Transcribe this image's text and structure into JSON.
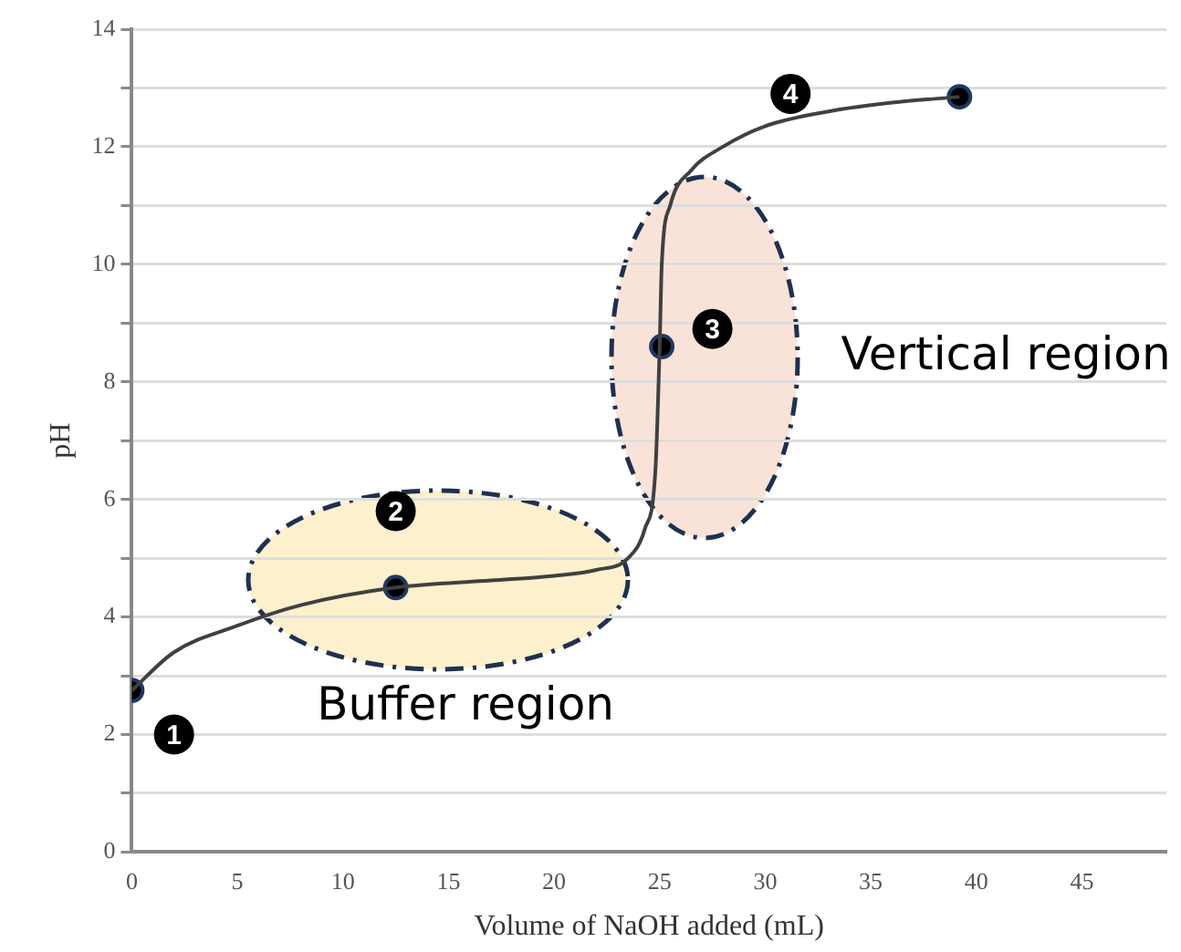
{
  "chart_data": {
    "type": "line",
    "xlabel": "Volume of NaOH added (mL)",
    "ylabel": "pH",
    "xlim": [
      0,
      49
    ],
    "xticks": [
      0,
      5,
      10,
      15,
      20,
      25,
      30,
      35,
      40,
      45
    ],
    "ylim": [
      0,
      14
    ],
    "yticks": [
      0,
      {
        "value": 1,
        "label": null
      },
      2,
      {
        "value": 3,
        "label": null
      },
      4,
      {
        "value": 5,
        "label": null
      },
      6,
      {
        "value": 7,
        "label": null
      },
      8,
      {
        "value": 9,
        "label": null
      },
      10,
      {
        "value": 11,
        "label": null
      },
      12,
      {
        "value": 13,
        "label": null
      },
      14
    ],
    "grid": "y",
    "legend": false,
    "series": [
      {
        "color": "#404040",
        "marker": "none",
        "x": [
          0,
          2,
          5,
          8,
          12.5,
          17,
          20,
          22,
          23.5,
          24.3,
          24.8,
          25,
          25.1,
          25.5,
          26.5,
          28,
          30,
          33,
          36,
          39.2
        ],
        "values": [
          2.75,
          3.4,
          3.85,
          4.2,
          4.5,
          4.62,
          4.7,
          4.8,
          5.0,
          5.5,
          6.5,
          8.6,
          10,
          11,
          11.6,
          12.0,
          12.35,
          12.6,
          12.75,
          12.85
        ]
      },
      {
        "type": "scatter",
        "color": "#000000",
        "marker": "circle",
        "x": [
          0,
          12.5,
          25.1,
          39.2
        ],
        "values": [
          2.75,
          4.5,
          8.6,
          12.85
        ]
      }
    ],
    "annotations": [
      {
        "text": "1",
        "x": 2,
        "y": 2
      },
      {
        "text": "2",
        "x": 12.5,
        "y": 5.8
      },
      {
        "text": "3",
        "x": 27.5,
        "y": 8.9
      },
      {
        "text": "4",
        "x": 31.2,
        "y": 12.9
      },
      "Buffer region",
      "Vertical region"
    ]
  }
}
